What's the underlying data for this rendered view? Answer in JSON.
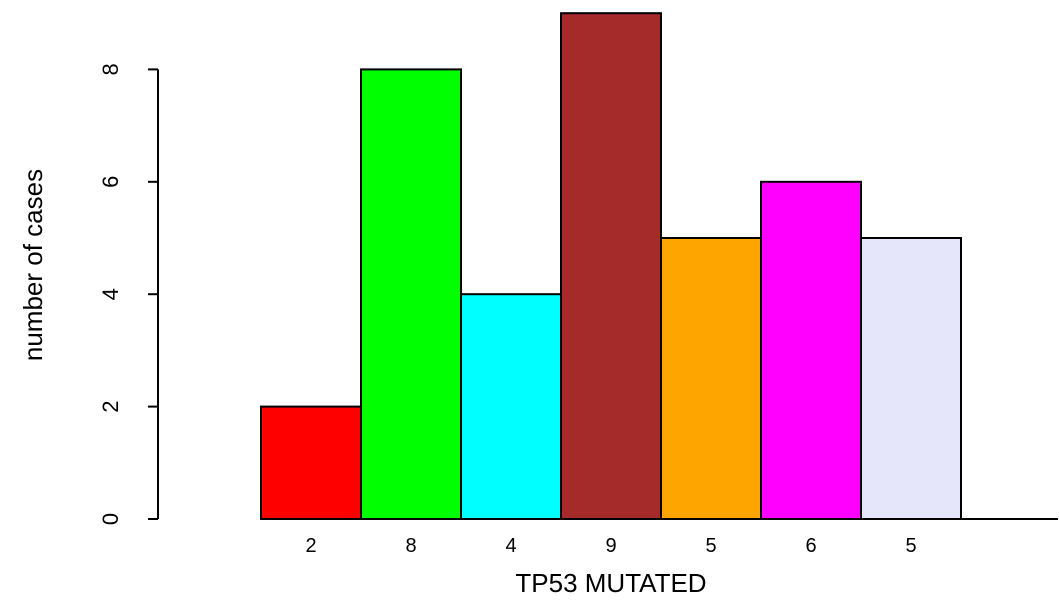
{
  "chart_data": {
    "type": "bar",
    "categories": [
      "2",
      "8",
      "4",
      "9",
      "5",
      "6",
      "5"
    ],
    "values": [
      2,
      8,
      4,
      9,
      5,
      6,
      5
    ],
    "colors": [
      "#ff0000",
      "#00ff00",
      "#00ffff",
      "#a52a2a",
      "#ffa500",
      "#ff00ff",
      "#e6e6fa"
    ],
    "title": "",
    "xlabel": "TP53 MUTATED",
    "ylabel": "number of cases",
    "ylim": [
      0,
      9
    ],
    "yticks": [
      0,
      2,
      4,
      6,
      8
    ],
    "grid": false,
    "legend": "none"
  }
}
